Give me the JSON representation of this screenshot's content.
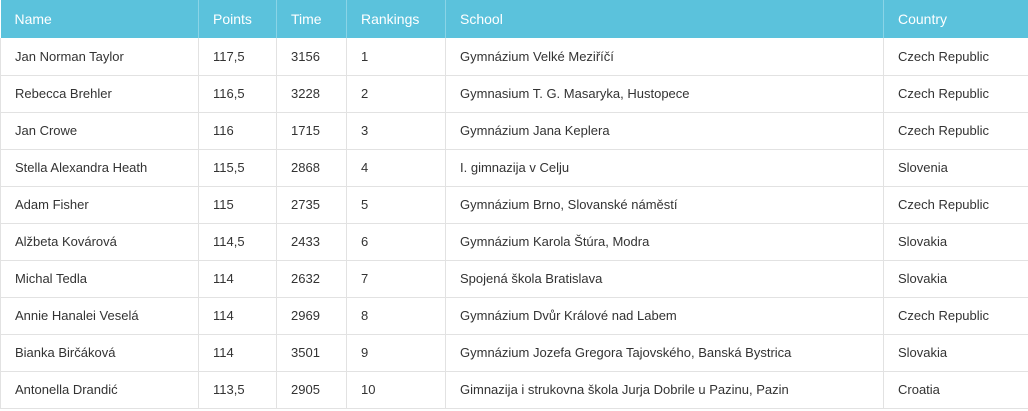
{
  "table": {
    "headers": {
      "name": "Name",
      "points": "Points",
      "time": "Time",
      "rankings": "Rankings",
      "school": "School",
      "country": "Country"
    },
    "rows": [
      {
        "name": "Jan Norman Taylor",
        "points": "117,5",
        "time": "3156",
        "rank": "1",
        "school": "Gymnázium Velké Meziříčí",
        "country": "Czech Republic"
      },
      {
        "name": "Rebecca Brehler",
        "points": "116,5",
        "time": "3228",
        "rank": "2",
        "school": "Gymnasium T. G. Masaryka, Hustopece",
        "country": "Czech Republic"
      },
      {
        "name": "Jan Crowe",
        "points": "116",
        "time": "1715",
        "rank": "3",
        "school": "Gymnázium Jana Keplera",
        "country": "Czech Republic"
      },
      {
        "name": "Stella Alexandra Heath",
        "points": "115,5",
        "time": "2868",
        "rank": "4",
        "school": "I. gimnazija v Celju",
        "country": "Slovenia"
      },
      {
        "name": "Adam Fisher",
        "points": "115",
        "time": "2735",
        "rank": "5",
        "school": "Gymnázium Brno, Slovanské náměstí",
        "country": "Czech Republic"
      },
      {
        "name": "Alžbeta Kovárová",
        "points": "114,5",
        "time": "2433",
        "rank": "6",
        "school": "Gymnázium Karola Štúra, Modra",
        "country": "Slovakia"
      },
      {
        "name": "Michal Tedla",
        "points": "114",
        "time": "2632",
        "rank": "7",
        "school": "Spojená škola Bratislava",
        "country": "Slovakia"
      },
      {
        "name": "Annie Hanalei Veselá",
        "points": "114",
        "time": "2969",
        "rank": "8",
        "school": "Gymnázium Dvůr Králové nad Labem",
        "country": "Czech Republic"
      },
      {
        "name": "Bianka Birčáková",
        "points": "114",
        "time": "3501",
        "rank": "9",
        "school": "Gymnázium Jozefa Gregora Tajovského, Banská Bystrica",
        "country": "Slovakia"
      },
      {
        "name": "Antonella Drandić",
        "points": "113,5",
        "time": "2905",
        "rank": "10",
        "school": "Gimnazija i strukovna škola Jurja Dobrile u Pazinu, Pazin",
        "country": "Croatia"
      }
    ]
  },
  "colors": {
    "header_background": "#5bc2dc",
    "header_text": "#ffffff",
    "cell_text": "#333333",
    "grid_line": "#e2e2e2"
  }
}
